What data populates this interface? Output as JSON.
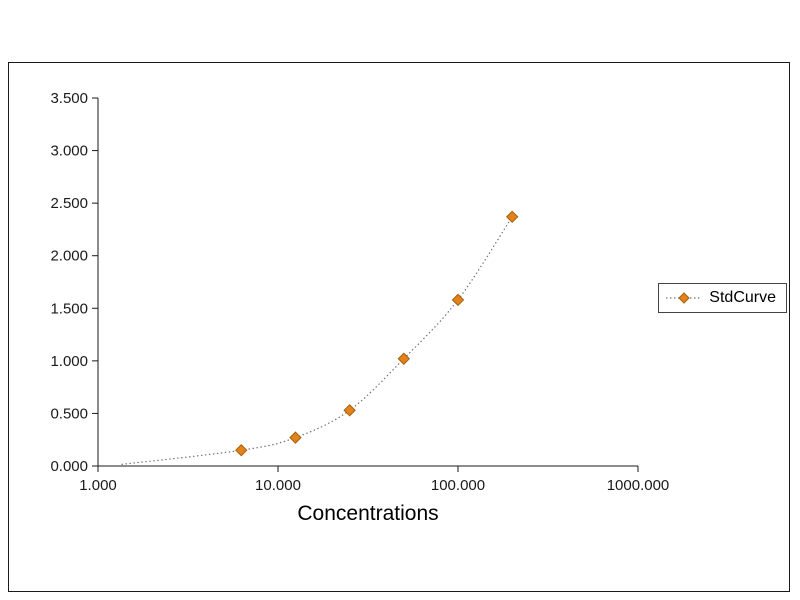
{
  "chart_data": {
    "type": "scatter",
    "title": "",
    "xlabel": "Concentrations",
    "ylabel": "",
    "x_scale": "log",
    "xlim": [
      1,
      1000
    ],
    "ylim": [
      0,
      3.5
    ],
    "x_ticks": [
      1,
      10,
      100,
      1000
    ],
    "x_tick_labels": [
      "1.000",
      "10.000",
      "100.000",
      "1000.000"
    ],
    "y_ticks": [
      0,
      0.5,
      1,
      1.5,
      2,
      2.5,
      3,
      3.5
    ],
    "y_tick_labels": [
      "0.000",
      "0.500",
      "1.000",
      "1.500",
      "2.000",
      "2.500",
      "3.000",
      "3.500"
    ],
    "grid": "off",
    "fit_curve_start": {
      "x": 1.35,
      "y": 0.015
    },
    "series": [
      {
        "name": "StdCurve",
        "marker": "diamond",
        "marker_color": "#E2821B",
        "marker_edge_color": "#A85F0C",
        "line_style": "dotted",
        "line_color": "#6e6e6e",
        "x": [
          6.25,
          12.5,
          25,
          50,
          100,
          200
        ],
        "y": [
          0.15,
          0.27,
          0.53,
          1.02,
          1.58,
          2.37
        ]
      }
    ],
    "legend": {
      "position": "right",
      "entries": [
        "StdCurve"
      ]
    }
  },
  "colors": {
    "axis": "#1a1a1a",
    "background": "#ffffff",
    "frame_border": "#1a1a1a"
  }
}
